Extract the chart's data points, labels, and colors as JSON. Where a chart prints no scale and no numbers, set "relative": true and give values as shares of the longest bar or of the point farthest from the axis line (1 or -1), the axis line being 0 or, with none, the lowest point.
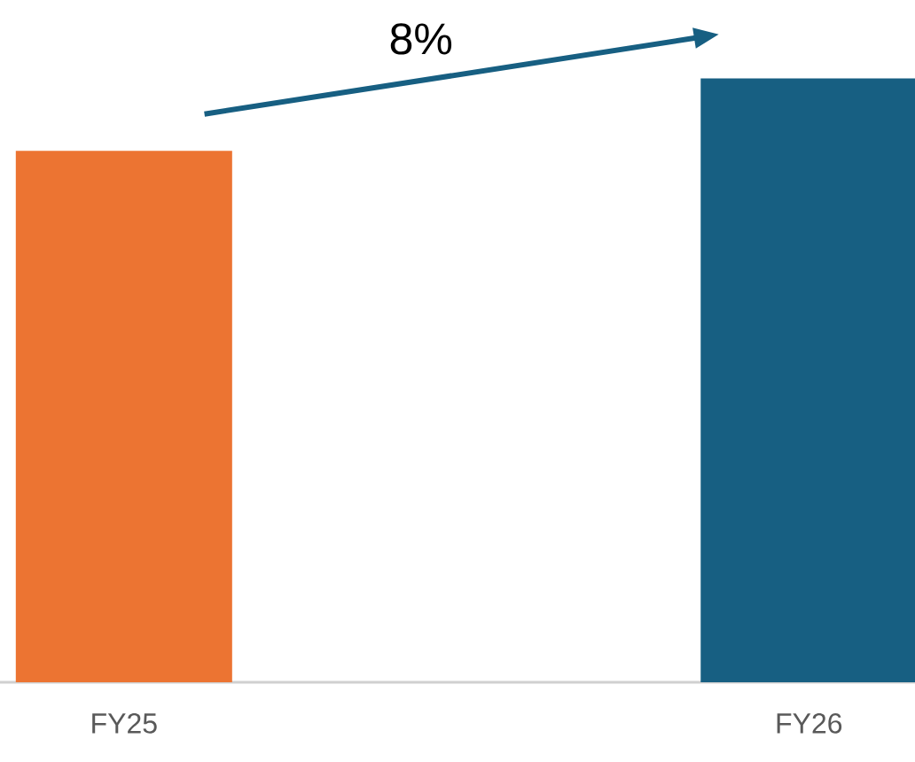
{
  "chart_data": {
    "type": "bar",
    "categories": [
      "FY25",
      "FY26"
    ],
    "values": [
      0.88,
      1
    ],
    "colors": [
      "#ec7432",
      "#175f82"
    ],
    "relative": true,
    "annotations": [
      "8%"
    ]
  }
}
